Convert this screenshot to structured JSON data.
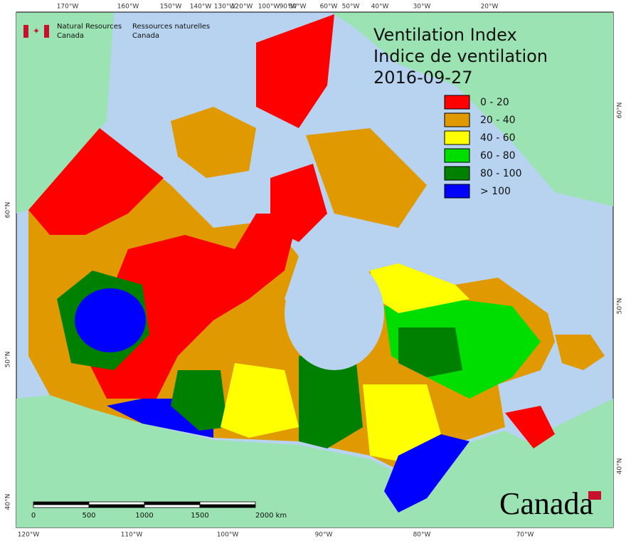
{
  "header": {
    "agency_en": [
      "Natural Resources",
      "Canada"
    ],
    "agency_fr": [
      "Ressources naturelles",
      "Canada"
    ]
  },
  "title": [
    "Ventilation Index",
    "Indice de ventilation"
  ],
  "date": "2016-09-27",
  "legend": [
    {
      "label": "0 - 20",
      "color": "#ff0000"
    },
    {
      "label": "20 - 40",
      "color": "#e09a00"
    },
    {
      "label": "40 - 60",
      "color": "#ffff00"
    },
    {
      "label": "60 - 80",
      "color": "#00dd00"
    },
    {
      "label": "80 - 100",
      "color": "#008000"
    },
    {
      "label": "> 100",
      "color": "#0000ff"
    }
  ],
  "top_longitudes": [
    "170°W",
    "160°W",
    "150°W",
    "140°W",
    "130°W",
    "120°W",
    "100°W",
    "90°W",
    "80°W",
    "60°W",
    "50°W",
    "40°W",
    "30°W",
    "20°W"
  ],
  "bottom_longitudes": [
    "120°W",
    "110°W",
    "100°W",
    "90°W",
    "80°W",
    "70°W"
  ],
  "left_latitudes": [
    "60°N",
    "50°N",
    "40°N"
  ],
  "right_latitudes": [
    "60°N",
    "50°N",
    "40°N"
  ],
  "scale_bar": [
    "0",
    "500",
    "1000",
    "1500",
    "2000 km"
  ],
  "wordmark": "Canada"
}
